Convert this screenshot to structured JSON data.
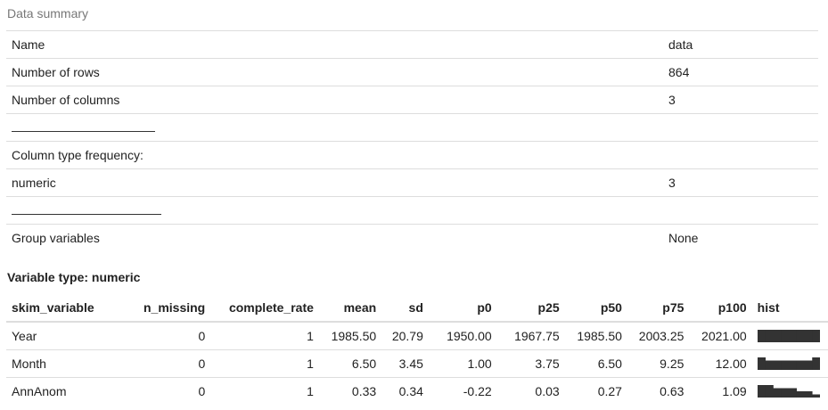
{
  "summary": {
    "caption": "Data summary",
    "rows": [
      {
        "label": "Name",
        "value": "data"
      },
      {
        "label": "Number of rows",
        "value": "864"
      },
      {
        "label": "Number of columns",
        "value": "3"
      },
      {
        "label": "",
        "value": "",
        "separator": true
      },
      {
        "label": "Column type frequency:",
        "value": ""
      },
      {
        "label": "numeric",
        "value": "3"
      },
      {
        "label": "",
        "value": "",
        "separator": true
      },
      {
        "label": "Group variables",
        "value": "None"
      }
    ]
  },
  "variable_type": {
    "title": "Variable type: numeric",
    "headers": [
      "skim_variable",
      "n_missing",
      "complete_rate",
      "mean",
      "sd",
      "p0",
      "p25",
      "p50",
      "p75",
      "p100",
      "hist"
    ],
    "rows": [
      {
        "skim_variable": "Year",
        "n_missing": "0",
        "complete_rate": "1",
        "mean": "1985.50",
        "sd": "20.79",
        "p0": "1950.00",
        "p25": "1967.75",
        "p50": "1985.50",
        "p75": "2003.25",
        "p100": "2021.00",
        "hist": [
          1,
          1,
          1,
          1,
          1,
          1,
          1,
          1
        ]
      },
      {
        "skim_variable": "Month",
        "n_missing": "0",
        "complete_rate": "1",
        "mean": "6.50",
        "sd": "3.45",
        "p0": "1.00",
        "p25": "3.75",
        "p50": "6.50",
        "p75": "9.25",
        "p100": "12.00",
        "hist": [
          1,
          0.75,
          0.75,
          0.75,
          0.75,
          0.75,
          0.75,
          1
        ]
      },
      {
        "skim_variable": "AnnAnom",
        "n_missing": "0",
        "complete_rate": "1",
        "mean": "0.33",
        "sd": "0.34",
        "p0": "-0.22",
        "p25": "0.03",
        "p50": "0.27",
        "p75": "0.63",
        "p100": "1.09",
        "hist": [
          1,
          1,
          0.75,
          0.75,
          0.75,
          0.5,
          0.5,
          0.25
        ]
      }
    ]
  },
  "colors": {
    "hist_bar": "#333333",
    "rule": "#dddddd",
    "caption": "#777777"
  }
}
